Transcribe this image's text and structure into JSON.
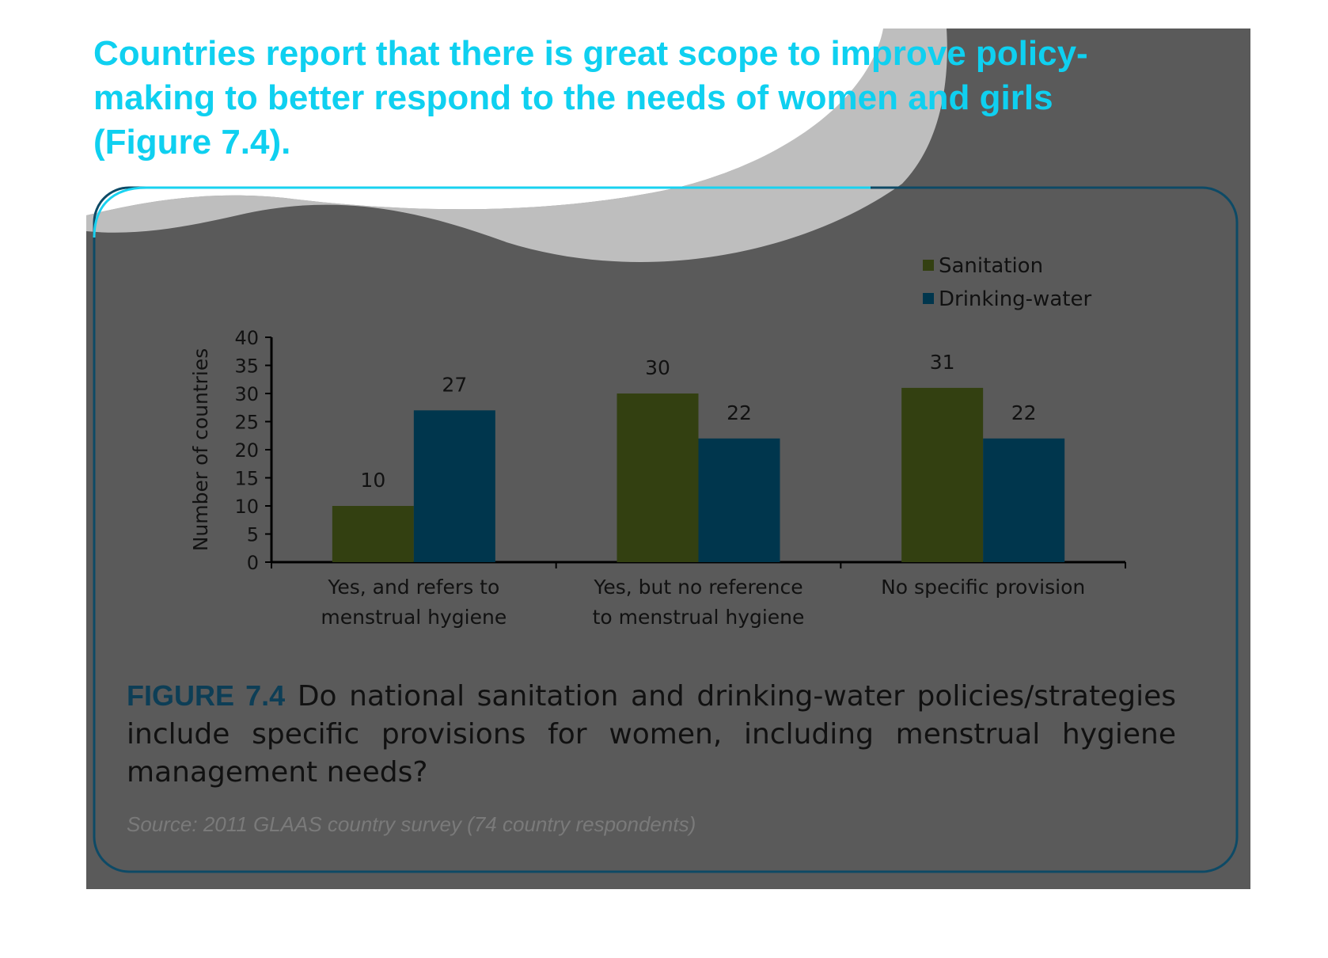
{
  "headline": "Countries report that there is great scope to improve policy-making to better respond to the needs of women and girls (Figure 7.4).",
  "colors": {
    "panel": "#5a5a5a",
    "headline": "#0fd0f0",
    "sanitation": "#334011",
    "drinking_water": "#00364d",
    "figure_label": "#0d3e56"
  },
  "chart_data": {
    "type": "bar",
    "categories": [
      "Yes, and refers to menstrual hygiene",
      "Yes, but no reference to menstrual hygiene",
      "No specific provision"
    ],
    "category_lines": [
      [
        "Yes, and refers to",
        "menstrual hygiene"
      ],
      [
        "Yes, but no reference",
        "to menstrual hygiene"
      ],
      [
        "No specific provision"
      ]
    ],
    "series": [
      {
        "name": "Sanitation",
        "values": [
          10,
          30,
          31
        ]
      },
      {
        "name": "Drinking-water",
        "values": [
          27,
          22,
          22
        ]
      }
    ],
    "ylabel": "Number of countries",
    "ylim": [
      0,
      40
    ],
    "yticks": [
      0,
      5,
      10,
      15,
      20,
      25,
      30,
      35,
      40
    ],
    "legend_position": "top-right",
    "grid": false,
    "data_labels": true
  },
  "caption": {
    "label": "FIGURE 7.4",
    "text": "Do national sanitation and drinking-water policies/strategies include specific provisions for women, including menstrual hygiene management needs?"
  },
  "source": "Source: 2011 GLAAS country survey (74 country respondents)"
}
